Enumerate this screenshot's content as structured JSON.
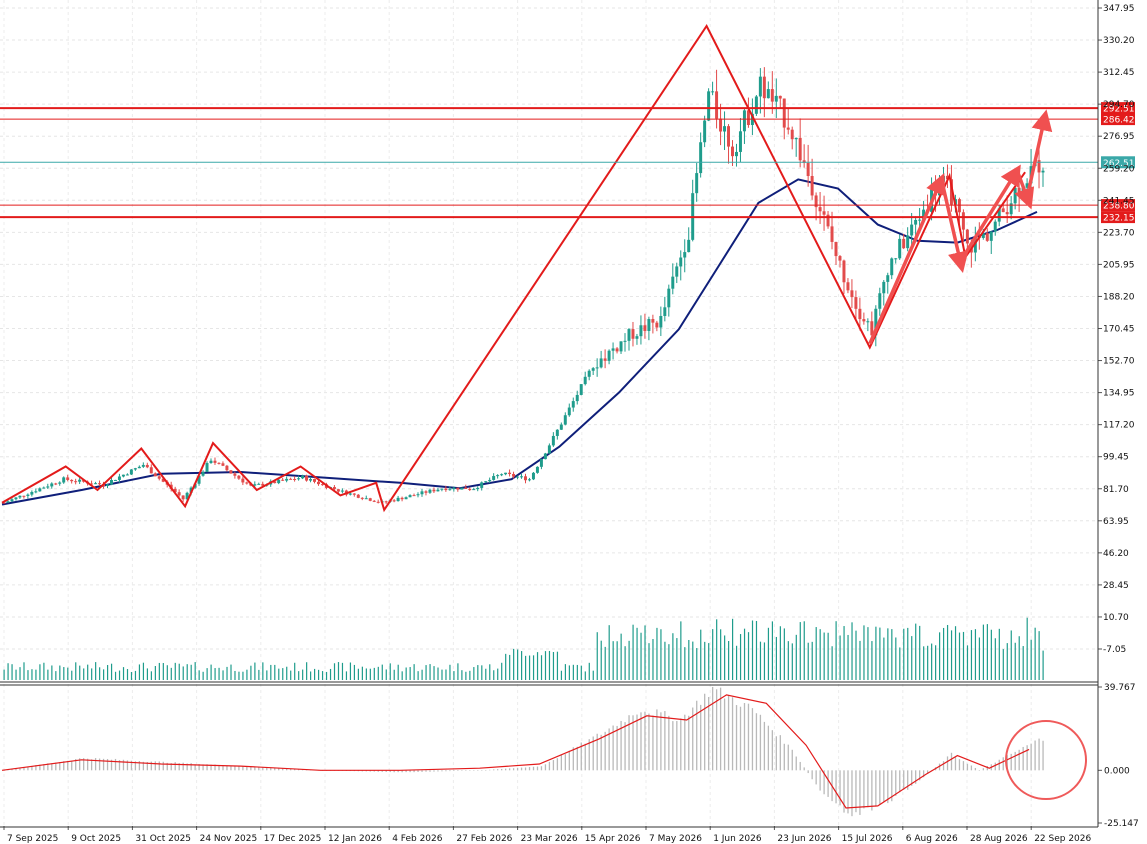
{
  "chart_data": [
    {
      "type": "candlestick",
      "panel": "price",
      "y_ticks": [
        "347.95",
        "330.20",
        "312.45",
        "294.70",
        "276.95",
        "259.20",
        "241.45",
        "223.70",
        "205.95",
        "188.20",
        "170.45",
        "152.70",
        "134.95",
        "117.20",
        "99.45",
        "81.70",
        "63.95",
        "46.20",
        "28.45",
        "10.70",
        "-7.05"
      ],
      "ylim": [
        -7.05,
        347.95
      ],
      "x_ticks": [
        "7 Sep 2025",
        "9 Oct 2025",
        "31 Oct 2025",
        "24 Nov 2025",
        "17 Dec 2025",
        "12 Jan 2026",
        "4 Feb 2026",
        "27 Feb 2026",
        "23 Mar 2026",
        "15 Apr 2026",
        "7 May 2026",
        "1 Jun 2026",
        "23 Jun 2026",
        "15 Jul 2026",
        "6 Aug 2026",
        "28 Aug 2026",
        "22 Sep 2026"
      ],
      "price_path": [
        {
          "bar": 0,
          "price": 74
        },
        {
          "bar": 15,
          "price": 87
        },
        {
          "bar": 25,
          "price": 84
        },
        {
          "bar": 35,
          "price": 95
        },
        {
          "bar": 45,
          "price": 76
        },
        {
          "bar": 52,
          "price": 98
        },
        {
          "bar": 62,
          "price": 83
        },
        {
          "bar": 75,
          "price": 88
        },
        {
          "bar": 85,
          "price": 80
        },
        {
          "bar": 95,
          "price": 74
        },
        {
          "bar": 110,
          "price": 82
        },
        {
          "bar": 118,
          "price": 82
        },
        {
          "bar": 125,
          "price": 90
        },
        {
          "bar": 132,
          "price": 87
        },
        {
          "bar": 138,
          "price": 110
        },
        {
          "bar": 148,
          "price": 150
        },
        {
          "bar": 158,
          "price": 168
        },
        {
          "bar": 165,
          "price": 175
        },
        {
          "bar": 172,
          "price": 225
        },
        {
          "bar": 177,
          "price": 300
        },
        {
          "bar": 183,
          "price": 270
        },
        {
          "bar": 190,
          "price": 305
        },
        {
          "bar": 197,
          "price": 285
        },
        {
          "bar": 203,
          "price": 250
        },
        {
          "bar": 210,
          "price": 205
        },
        {
          "bar": 215,
          "price": 180
        },
        {
          "bar": 218,
          "price": 170
        },
        {
          "bar": 222,
          "price": 205
        },
        {
          "bar": 228,
          "price": 225
        },
        {
          "bar": 235,
          "price": 252
        },
        {
          "bar": 238,
          "price": 245
        },
        {
          "bar": 242,
          "price": 215
        },
        {
          "bar": 248,
          "price": 225
        },
        {
          "bar": 255,
          "price": 250
        },
        {
          "bar": 260,
          "price": 262
        }
      ],
      "moving_average": [
        {
          "bar": 0,
          "value": 73
        },
        {
          "bar": 20,
          "value": 81
        },
        {
          "bar": 40,
          "value": 90
        },
        {
          "bar": 60,
          "value": 91
        },
        {
          "bar": 80,
          "value": 88
        },
        {
          "bar": 100,
          "value": 85
        },
        {
          "bar": 115,
          "value": 82
        },
        {
          "bar": 128,
          "value": 87
        },
        {
          "bar": 140,
          "value": 105
        },
        {
          "bar": 155,
          "value": 135
        },
        {
          "bar": 170,
          "value": 170
        },
        {
          "bar": 180,
          "value": 205
        },
        {
          "bar": 190,
          "value": 240
        },
        {
          "bar": 200,
          "value": 253
        },
        {
          "bar": 210,
          "value": 248
        },
        {
          "bar": 220,
          "value": 228
        },
        {
          "bar": 230,
          "value": 219
        },
        {
          "bar": 240,
          "value": 218
        },
        {
          "bar": 250,
          "value": 225
        },
        {
          "bar": 260,
          "value": 235
        }
      ],
      "zigzag": [
        {
          "bar": 0,
          "price": 74
        },
        {
          "bar": 16,
          "price": 94
        },
        {
          "bar": 24,
          "price": 81
        },
        {
          "bar": 35,
          "price": 104
        },
        {
          "bar": 46,
          "price": 72
        },
        {
          "bar": 53,
          "price": 107
        },
        {
          "bar": 64,
          "price": 81
        },
        {
          "bar": 75,
          "price": 94
        },
        {
          "bar": 85,
          "price": 78
        },
        {
          "bar": 94,
          "price": 85
        },
        {
          "bar": 96,
          "price": 70
        },
        {
          "bar": 177,
          "price": 338
        },
        {
          "bar": 218,
          "price": 160
        },
        {
          "bar": 238,
          "price": 255
        },
        {
          "bar": 242,
          "price": 210
        },
        {
          "bar": 257,
          "price": 257
        }
      ],
      "forecast_arrows": [
        {
          "from": {
            "bar": 218,
            "price": 162
          },
          "to": {
            "bar": 236,
            "price": 253
          }
        },
        {
          "from": {
            "bar": 236,
            "price": 253
          },
          "to": {
            "bar": 241,
            "price": 205
          }
        },
        {
          "from": {
            "bar": 242,
            "price": 212
          },
          "to": {
            "bar": 255,
            "price": 258
          }
        },
        {
          "from": {
            "bar": 255,
            "price": 258
          },
          "to": {
            "bar": 258,
            "price": 240
          }
        },
        {
          "from": {
            "bar": 258,
            "price": 248
          },
          "to": {
            "bar": 262,
            "price": 288
          }
        }
      ],
      "levels": [
        {
          "label": "292.51",
          "value": 292.51,
          "color": "#e31b1b",
          "weight": "thick"
        },
        {
          "label": "286.42",
          "value": 286.42,
          "color": "#e31b1b",
          "weight": "thin"
        },
        {
          "label": "262.51",
          "value": 262.51,
          "color": "#3aa8a8",
          "weight": "thin"
        },
        {
          "label": "238.80",
          "value": 238.8,
          "color": "#e31b1b",
          "weight": "thin"
        },
        {
          "label": "232.15",
          "value": 232.15,
          "color": "#e31b1b",
          "weight": "thick"
        }
      ],
      "colors": {
        "bull": "#1f9c8c",
        "bear": "#e24b4b",
        "ma": "#0f1f7a",
        "zigzag": "#e31b1b",
        "arrow": "#f05050",
        "volume": "#1f9c8c"
      },
      "grid": true
    },
    {
      "type": "bar",
      "panel": "oscillator",
      "y_ticks": [
        "39.767",
        "0.000",
        "-25.147"
      ],
      "ylim": [
        -25.147,
        39.767
      ],
      "histogram_path": [
        {
          "bar": 0,
          "value": 0
        },
        {
          "bar": 20,
          "value": 6
        },
        {
          "bar": 40,
          "value": 4
        },
        {
          "bar": 60,
          "value": 2
        },
        {
          "bar": 80,
          "value": 0
        },
        {
          "bar": 100,
          "value": -1
        },
        {
          "bar": 120,
          "value": 0
        },
        {
          "bar": 135,
          "value": 2
        },
        {
          "bar": 150,
          "value": 18
        },
        {
          "bar": 160,
          "value": 30
        },
        {
          "bar": 170,
          "value": 25
        },
        {
          "bar": 178,
          "value": 40
        },
        {
          "bar": 188,
          "value": 30
        },
        {
          "bar": 198,
          "value": 10
        },
        {
          "bar": 205,
          "value": -10
        },
        {
          "bar": 212,
          "value": -22
        },
        {
          "bar": 220,
          "value": -18
        },
        {
          "bar": 230,
          "value": -5
        },
        {
          "bar": 238,
          "value": 8
        },
        {
          "bar": 245,
          "value": 0
        },
        {
          "bar": 255,
          "value": 10
        },
        {
          "bar": 260,
          "value": 15
        }
      ],
      "signal_path": [
        {
          "bar": 0,
          "value": 0
        },
        {
          "bar": 20,
          "value": 5
        },
        {
          "bar": 40,
          "value": 3
        },
        {
          "bar": 60,
          "value": 2
        },
        {
          "bar": 80,
          "value": 0
        },
        {
          "bar": 100,
          "value": 0
        },
        {
          "bar": 120,
          "value": 1
        },
        {
          "bar": 135,
          "value": 3
        },
        {
          "bar": 150,
          "value": 15
        },
        {
          "bar": 162,
          "value": 26
        },
        {
          "bar": 172,
          "value": 24
        },
        {
          "bar": 182,
          "value": 36
        },
        {
          "bar": 192,
          "value": 32
        },
        {
          "bar": 202,
          "value": 12
        },
        {
          "bar": 212,
          "value": -18
        },
        {
          "bar": 220,
          "value": -17
        },
        {
          "bar": 232,
          "value": -2
        },
        {
          "bar": 240,
          "value": 7
        },
        {
          "bar": 248,
          "value": 1
        },
        {
          "bar": 258,
          "value": 10
        }
      ],
      "colors": {
        "histogram": "#b9b9b9",
        "signal": "#e31b1b",
        "highlight": "#ef5a5a"
      }
    }
  ]
}
